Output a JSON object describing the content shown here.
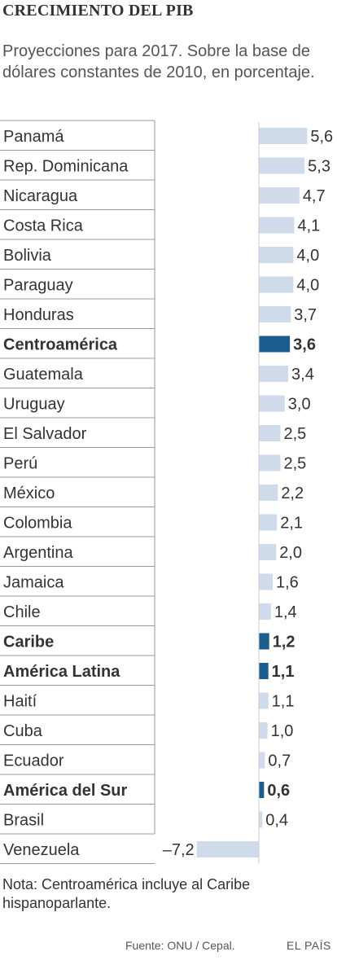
{
  "title": "CRECIMIENTO DEL PIB",
  "subtitle": "Proyecciones para 2017. Sobre la base de dólares constantes de 2010, en porcentaje.",
  "note": "Nota: Centroamérica incluye al Caribe hispanoparlante.",
  "source": "Fuente: ONU / Cepal.",
  "brand": "EL PAÍS",
  "colors": {
    "bar": "#cfdaea",
    "highlight": "#1b5d8c",
    "grid": "#999999",
    "text": "#333333"
  },
  "chart_data": {
    "type": "bar",
    "orientation": "horizontal",
    "categories": [
      "Panamá",
      "Rep. Dominicana",
      "Nicaragua",
      "Costa Rica",
      "Bolivia",
      "Paraguay",
      "Honduras",
      "Centroamérica",
      "Guatemala",
      "Uruguay",
      "El Salvador",
      "Perú",
      "México",
      "Colombia",
      "Argentina",
      "Jamaica",
      "Chile",
      "Caribe",
      "América Latina",
      "Haití",
      "Cuba",
      "Ecuador",
      "América del Sur",
      "Brasil",
      "Venezuela"
    ],
    "values": [
      5.6,
      5.3,
      4.7,
      4.1,
      4.0,
      4.0,
      3.7,
      3.6,
      3.4,
      3.0,
      2.5,
      2.5,
      2.2,
      2.1,
      2.0,
      1.6,
      1.4,
      1.2,
      1.1,
      1.1,
      1.0,
      0.7,
      0.6,
      0.4,
      -7.2
    ],
    "value_labels": [
      "5,6",
      "5,3",
      "4,7",
      "4,1",
      "4,0",
      "4,0",
      "3,7",
      "3,6",
      "3,4",
      "3,0",
      "2,5",
      "2,5",
      "2,2",
      "2,1",
      "2,0",
      "1,6",
      "1,4",
      "1,2",
      "1,1",
      "1,1",
      "1,0",
      "0,7",
      "0,6",
      "0,4",
      "–7,2"
    ],
    "highlighted": [
      "Centroamérica",
      "Caribe",
      "América Latina",
      "América del Sur"
    ]
  }
}
